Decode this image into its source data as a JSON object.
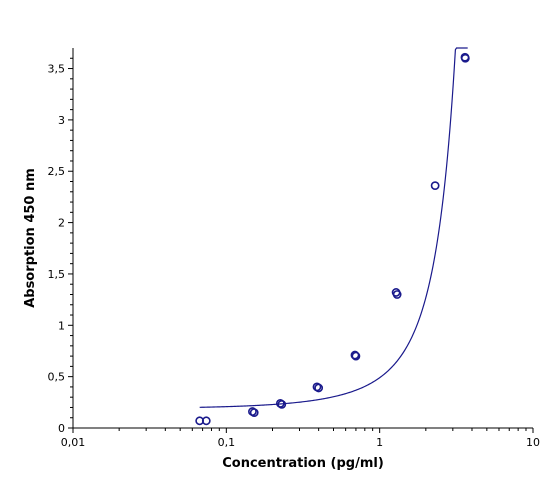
{
  "chart_data": {
    "type": "scatter",
    "xlabel": "Concentration (pg/ml)",
    "ylabel": "Absorption 450 nm",
    "xscale": "log",
    "xlim": [
      0.01,
      10
    ],
    "ylim": [
      0,
      3.7
    ],
    "xticks": [
      {
        "value": 0.01,
        "label": "0,01"
      },
      {
        "value": 0.1,
        "label": "0,1"
      },
      {
        "value": 1,
        "label": "1"
      },
      {
        "value": 10,
        "label": "10"
      }
    ],
    "yticks": [
      {
        "value": 0,
        "label": "0"
      },
      {
        "value": 0.5,
        "label": "0,5"
      },
      {
        "value": 1,
        "label": "1"
      },
      {
        "value": 1.5,
        "label": "1,5"
      },
      {
        "value": 2,
        "label": "2"
      },
      {
        "value": 2.5,
        "label": "2,5"
      },
      {
        "value": 3,
        "label": "3"
      },
      {
        "value": 3.5,
        "label": "3,5"
      }
    ],
    "grid": false,
    "series": [
      {
        "points": [
          {
            "x": 0.067,
            "y": 0.07
          },
          {
            "x": 0.074,
            "y": 0.07
          },
          {
            "x": 0.148,
            "y": 0.16
          },
          {
            "x": 0.152,
            "y": 0.15
          },
          {
            "x": 0.225,
            "y": 0.24
          },
          {
            "x": 0.23,
            "y": 0.23
          },
          {
            "x": 0.39,
            "y": 0.4
          },
          {
            "x": 0.4,
            "y": 0.39
          },
          {
            "x": 0.69,
            "y": 0.71
          },
          {
            "x": 0.7,
            "y": 0.7
          },
          {
            "x": 1.28,
            "y": 1.32
          },
          {
            "x": 1.3,
            "y": 1.3
          },
          {
            "x": 2.3,
            "y": 2.36
          },
          {
            "x": 3.6,
            "y": 3.61
          },
          {
            "x": 3.62,
            "y": 3.6
          }
        ]
      }
    ],
    "fit": {
      "type": "exponential",
      "color": "#1a1a8c",
      "x_range": [
        0.067,
        3.75
      ]
    },
    "colors": {
      "series": "#1a1a8c",
      "axes": "#000000"
    }
  }
}
